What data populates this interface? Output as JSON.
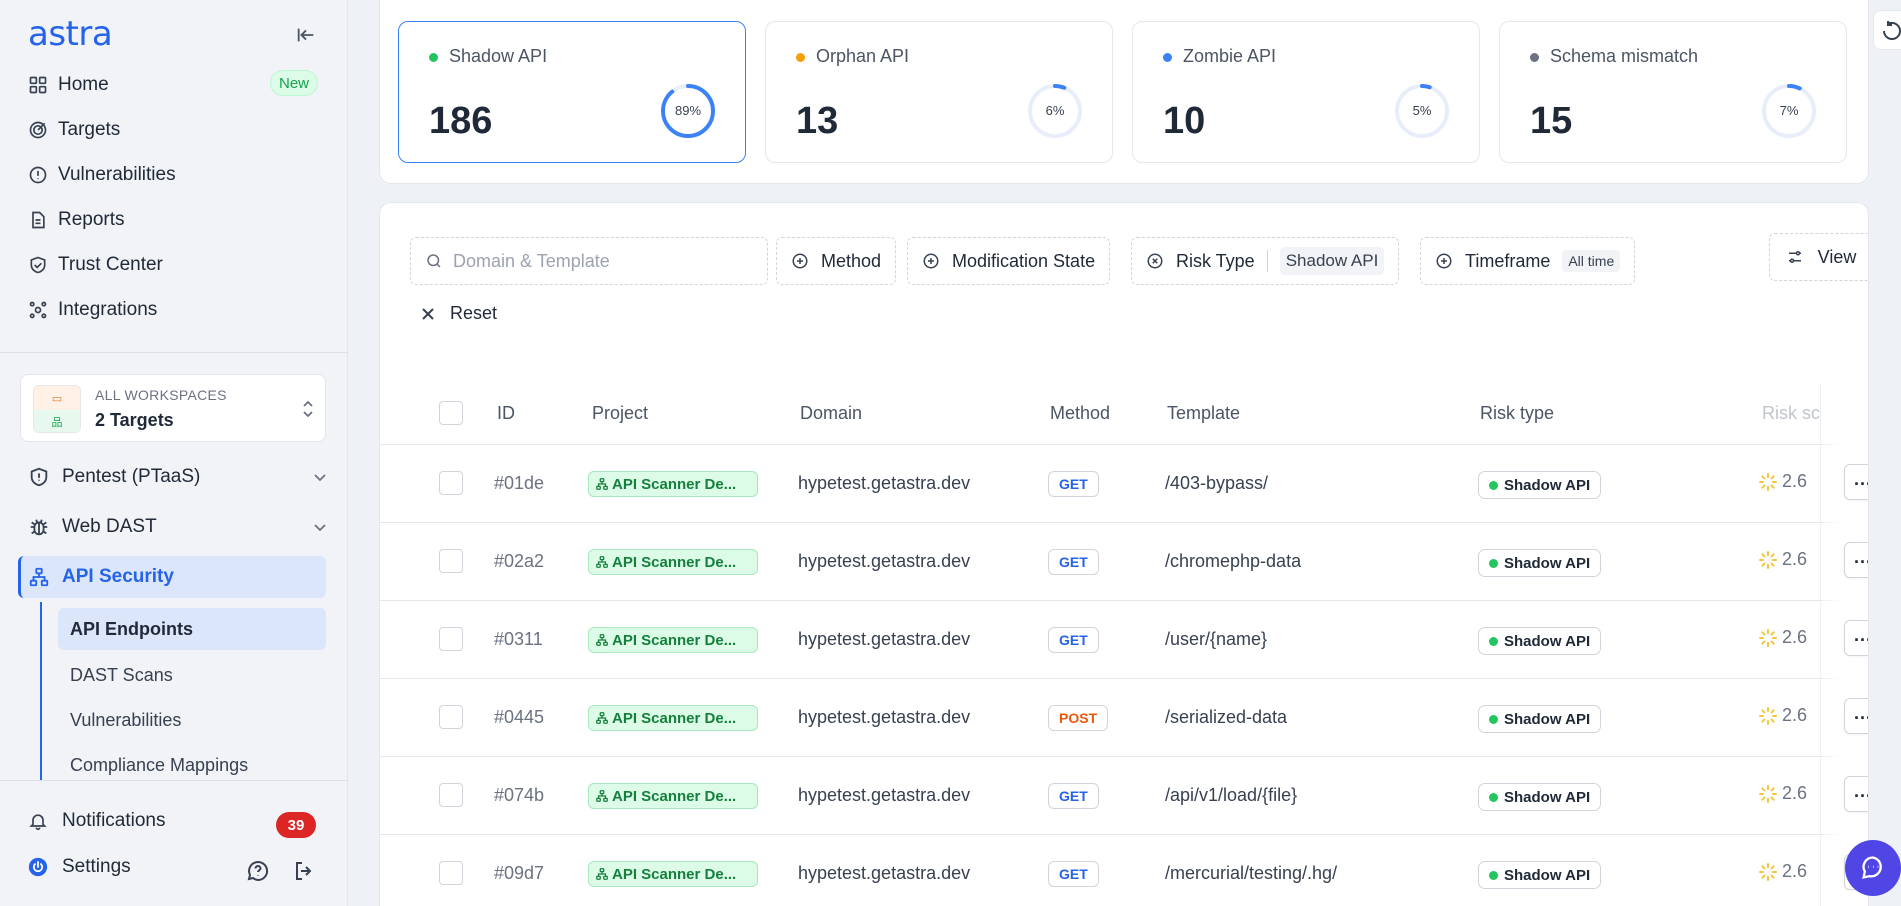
{
  "sidebar": {
    "logo": "astra",
    "nav": [
      {
        "label": "Home",
        "icon": "grid-icon"
      },
      {
        "label": "Targets",
        "icon": "target-icon"
      },
      {
        "label": "Vulnerabilities",
        "icon": "alert-circle-icon"
      },
      {
        "label": "Reports",
        "icon": "file-icon"
      },
      {
        "label": "Trust Center",
        "icon": "shield-check-icon"
      },
      {
        "label": "Integrations",
        "icon": "integrations-icon"
      }
    ],
    "home_badge": "New",
    "workspace": {
      "label": "ALL WORKSPACES",
      "targets": "2 Targets"
    },
    "groups": [
      {
        "label": "Pentest (PTaaS)",
        "icon": "shield-icon"
      },
      {
        "label": "Web DAST",
        "icon": "bug-icon"
      },
      {
        "label": "API Security",
        "icon": "network-icon"
      }
    ],
    "sub_items": [
      {
        "label": "API Endpoints"
      },
      {
        "label": "DAST Scans"
      },
      {
        "label": "Vulnerabilities"
      },
      {
        "label": "Compliance Mappings"
      }
    ],
    "notifications": {
      "label": "Notifications",
      "count": "39"
    },
    "settings": {
      "label": "Settings"
    }
  },
  "stats": [
    {
      "label": "Shadow API",
      "value": "186",
      "percent": 89,
      "percent_label": "89%",
      "dot_color": "#22c55e"
    },
    {
      "label": "Orphan API",
      "value": "13",
      "percent": 6,
      "percent_label": "6%",
      "dot_color": "#f59e0b"
    },
    {
      "label": "Zombie API",
      "value": "10",
      "percent": 5,
      "percent_label": "5%",
      "dot_color": "#3b82f6"
    },
    {
      "label": "Schema mismatch",
      "value": "15",
      "percent": 7,
      "percent_label": "7%",
      "dot_color": "#6b7280"
    }
  ],
  "filters": {
    "search_placeholder": "Domain & Template",
    "method": "Method",
    "modification_state": "Modification State",
    "risk_type": "Risk Type",
    "risk_type_value": "Shadow API",
    "timeframe": "Timeframe",
    "timeframe_value": "All time",
    "view": "View",
    "reset": "Reset"
  },
  "table": {
    "headers": {
      "id": "ID",
      "project": "Project",
      "domain": "Domain",
      "method": "Method",
      "template": "Template",
      "risk_type": "Risk type",
      "risk_score": "Risk sc"
    },
    "rows": [
      {
        "id": "#01de",
        "project": "API Scanner De...",
        "domain": "hypetest.getastra.dev",
        "method": "GET",
        "template": "/403-bypass/",
        "risk": "Shadow API",
        "score": "2.6"
      },
      {
        "id": "#02a2",
        "project": "API Scanner De...",
        "domain": "hypetest.getastra.dev",
        "method": "GET",
        "template": "/chromephp-data",
        "risk": "Shadow API",
        "score": "2.6"
      },
      {
        "id": "#0311",
        "project": "API Scanner De...",
        "domain": "hypetest.getastra.dev",
        "method": "GET",
        "template": "/user/{name}",
        "risk": "Shadow API",
        "score": "2.6"
      },
      {
        "id": "#0445",
        "project": "API Scanner De...",
        "domain": "hypetest.getastra.dev",
        "method": "POST",
        "template": "/serialized-data",
        "risk": "Shadow API",
        "score": "2.6"
      },
      {
        "id": "#074b",
        "project": "API Scanner De...",
        "domain": "hypetest.getastra.dev",
        "method": "GET",
        "template": "/api/v1/load/{file}",
        "risk": "Shadow API",
        "score": "2.6"
      },
      {
        "id": "#09d7",
        "project": "API Scanner De...",
        "domain": "hypetest.getastra.dev",
        "method": "GET",
        "template": "/mercurial/testing/.hg/",
        "risk": "Shadow API",
        "score": "2.6"
      }
    ]
  },
  "colors": {
    "accent": "#2563eb",
    "get": "#2563eb",
    "post": "#ea580c",
    "shadow": "#22c55e"
  }
}
